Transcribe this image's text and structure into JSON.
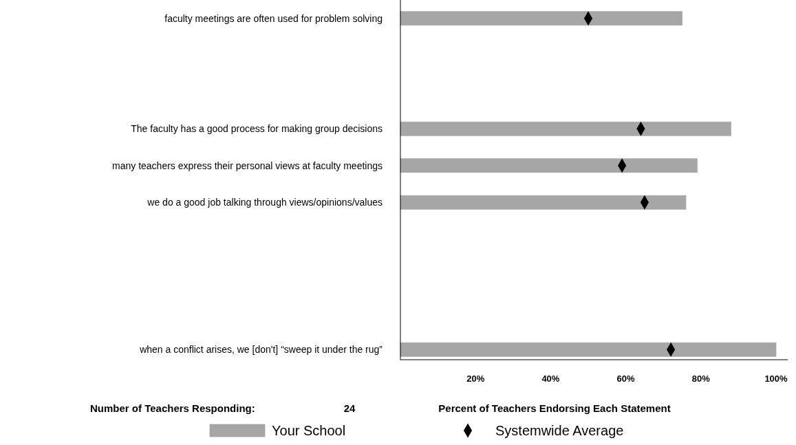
{
  "chart_data": {
    "type": "bar",
    "orientation": "horizontal",
    "categories": [
      "faculty meetings are often used for problem solving",
      null,
      null,
      "The faculty has a good process for making group decisions",
      "many teachers express their personal views at faculty meetings",
      "we do a good job talking through views/opinions/values",
      null,
      null,
      null,
      "when a conflict arises, we [don't] “sweep it under the rug”"
    ],
    "series": [
      {
        "name": "Your School",
        "type": "bar",
        "color": "#a6a6a6",
        "values": [
          75,
          null,
          null,
          88,
          79,
          76,
          null,
          null,
          null,
          100
        ]
      },
      {
        "name": "Systemwide Average",
        "type": "scatter",
        "marker": "diamond",
        "color": "#000000",
        "values": [
          50,
          null,
          null,
          64,
          59,
          65,
          null,
          null,
          null,
          72
        ]
      }
    ],
    "xlim": [
      0,
      100
    ],
    "xticks": [
      {
        "value": 20,
        "label": "20%"
      },
      {
        "value": 40,
        "label": "40%"
      },
      {
        "value": 60,
        "label": "60%"
      },
      {
        "value": 80,
        "label": "80%"
      },
      {
        "value": 100,
        "label": "100%"
      }
    ],
    "xlabel": "Percent of Teachers Endorsing Each Statement",
    "annotations": [
      "Number of Teachers Responding:",
      "24"
    ],
    "legend": "bottom",
    "grid": false
  }
}
